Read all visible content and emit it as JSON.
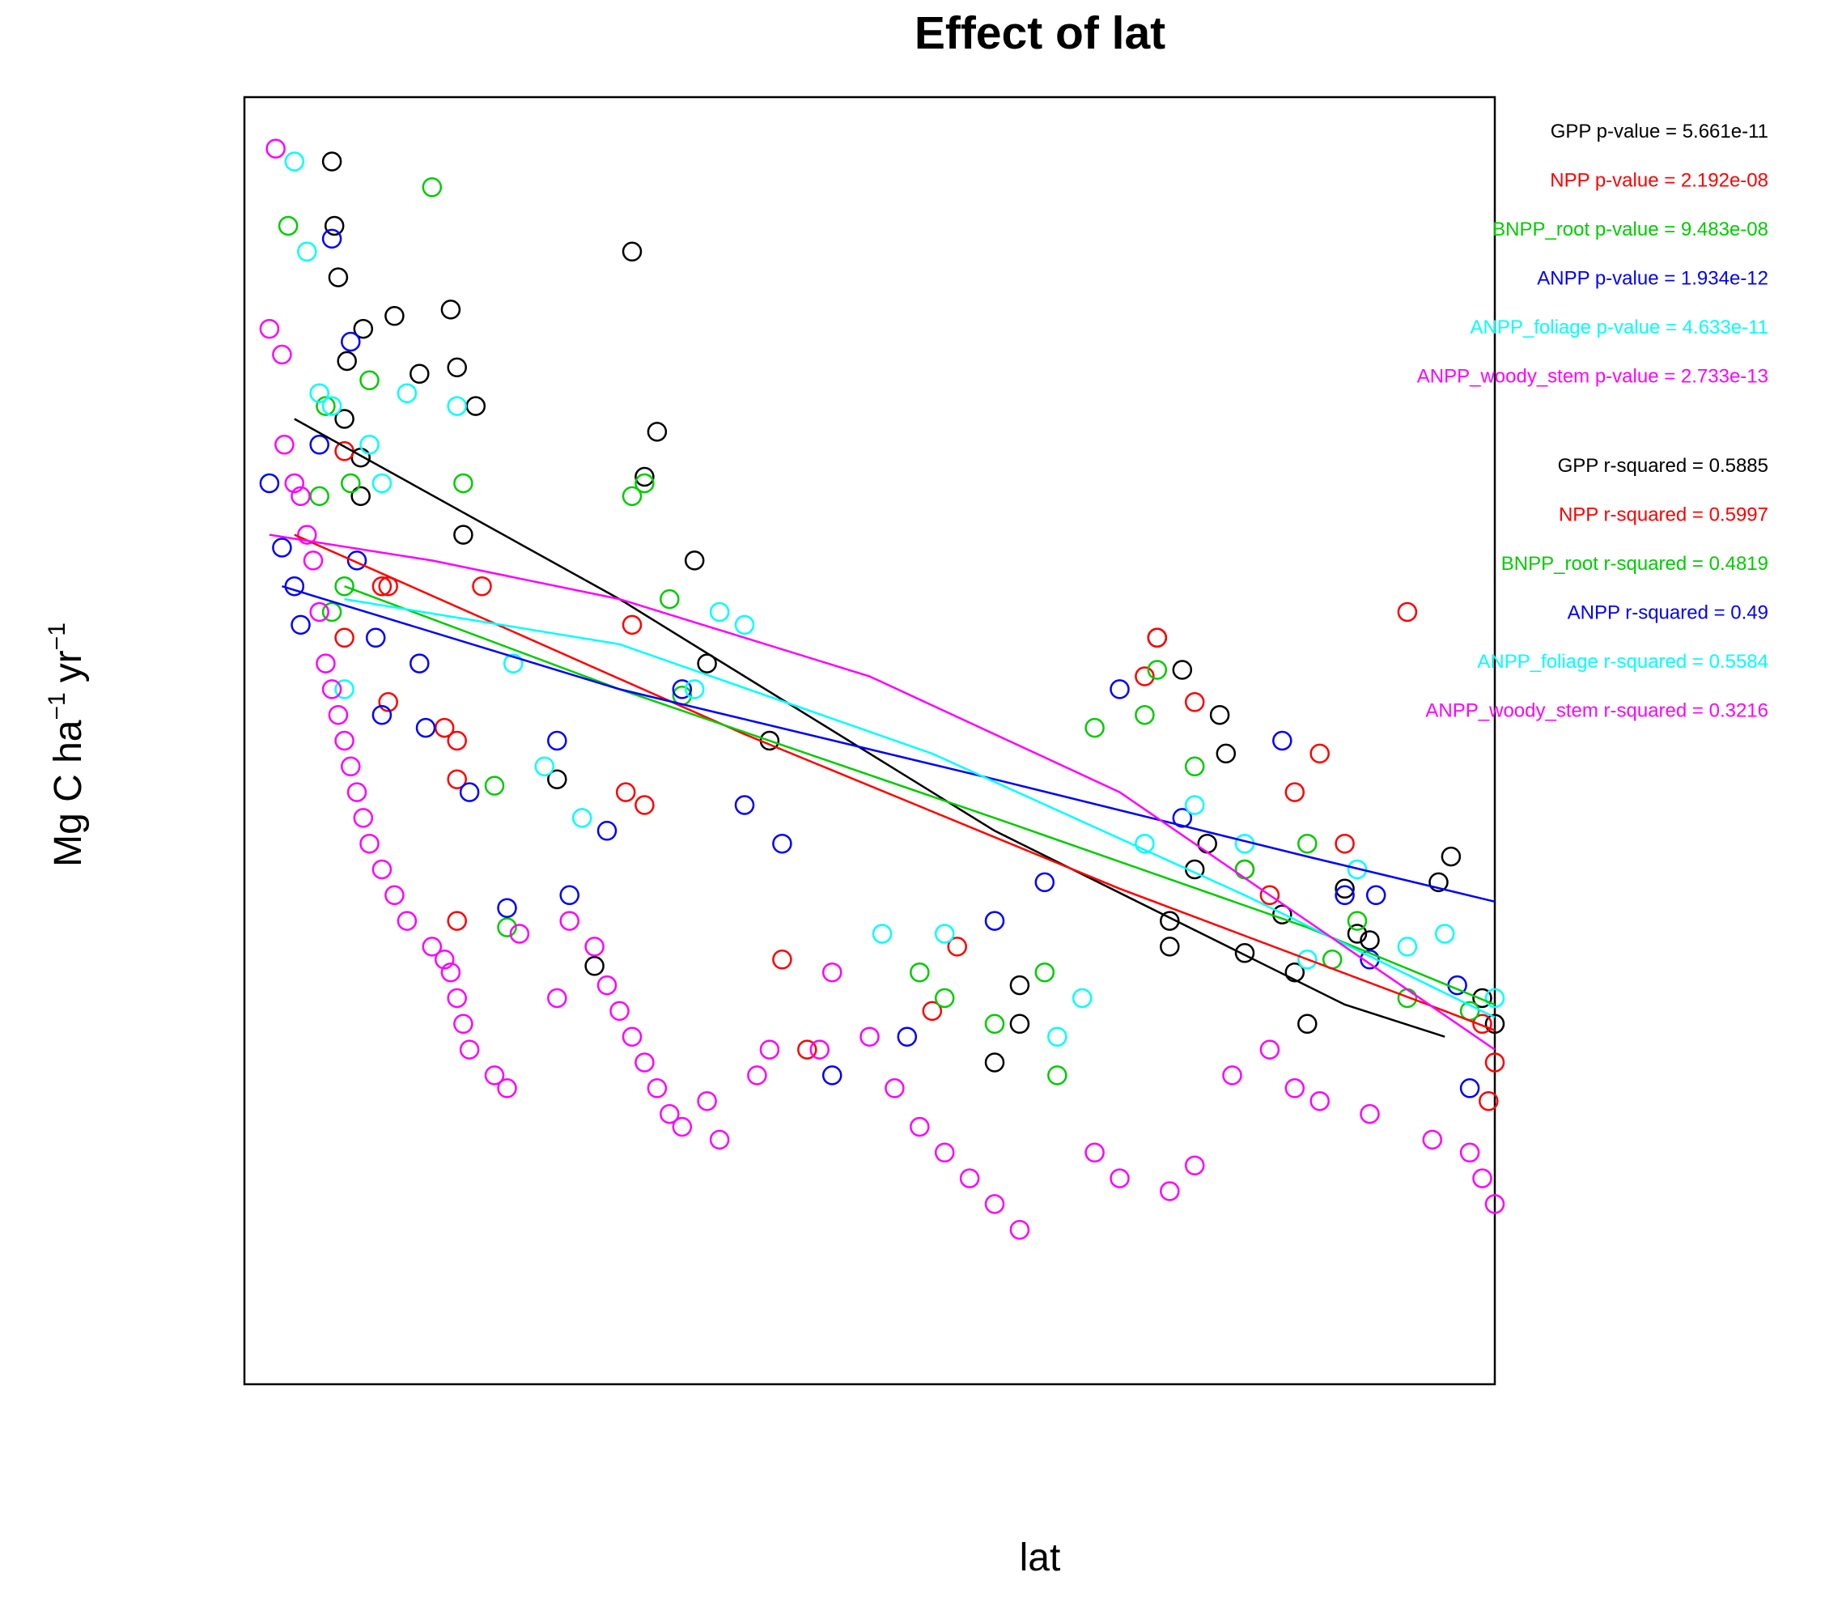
{
  "chart_data": {
    "type": "scatter",
    "title": "Effect of lat",
    "xlabel": "lat",
    "ylabel": "Mg C ha",
    "ylabel_unit_a": "yr",
    "ylabel_superscript": "−1",
    "xlim": [
      0,
      1000
    ],
    "ylim": [
      0,
      1000
    ],
    "axis_ticks": "none",
    "grid": false,
    "annotation_placement": "right",
    "series": [
      {
        "name": "GPP",
        "color": "#000000",
        "points": [
          [
            70,
            950
          ],
          [
            72,
            900
          ],
          [
            75,
            860
          ],
          [
            80,
            750
          ],
          [
            82,
            795
          ],
          [
            93,
            720
          ],
          [
            93,
            690
          ],
          [
            95,
            820
          ],
          [
            120,
            830
          ],
          [
            140,
            785
          ],
          [
            165,
            835
          ],
          [
            170,
            790
          ],
          [
            185,
            760
          ],
          [
            175,
            660
          ],
          [
            310,
            880
          ],
          [
            330,
            740
          ],
          [
            320,
            705
          ],
          [
            250,
            470
          ],
          [
            280,
            325
          ],
          [
            360,
            640
          ],
          [
            370,
            560
          ],
          [
            420,
            500
          ],
          [
            600,
            250
          ],
          [
            620,
            310
          ],
          [
            620,
            280
          ],
          [
            730,
            580
          ],
          [
            750,
            555
          ],
          [
            780,
            520
          ],
          [
            785,
            490
          ],
          [
            770,
            420
          ],
          [
            760,
            400
          ],
          [
            740,
            360
          ],
          [
            740,
            340
          ],
          [
            800,
            335
          ],
          [
            830,
            365
          ],
          [
            840,
            320
          ],
          [
            850,
            280
          ],
          [
            880,
            385
          ],
          [
            890,
            350
          ],
          [
            900,
            345
          ],
          [
            955,
            390
          ],
          [
            965,
            410
          ],
          [
            990,
            300
          ],
          [
            1000,
            280
          ]
        ],
        "fit_line": [
          [
            40,
            750
          ],
          [
            300,
            610
          ],
          [
            600,
            430
          ],
          [
            880,
            295
          ],
          [
            960,
            270
          ]
        ]
      },
      {
        "name": "NPP",
        "color": "#ff0000",
        "points": [
          [
            80,
            725
          ],
          [
            80,
            580
          ],
          [
            110,
            620
          ],
          [
            115,
            620
          ],
          [
            115,
            530
          ],
          [
            160,
            510
          ],
          [
            170,
            500
          ],
          [
            170,
            470
          ],
          [
            170,
            360
          ],
          [
            190,
            620
          ],
          [
            310,
            590
          ],
          [
            305,
            460
          ],
          [
            320,
            450
          ],
          [
            430,
            330
          ],
          [
            450,
            260
          ],
          [
            550,
            290
          ],
          [
            570,
            340
          ],
          [
            720,
            550
          ],
          [
            730,
            580
          ],
          [
            760,
            530
          ],
          [
            800,
            400
          ],
          [
            820,
            380
          ],
          [
            840,
            460
          ],
          [
            860,
            490
          ],
          [
            880,
            420
          ],
          [
            930,
            600
          ],
          [
            990,
            280
          ],
          [
            995,
            220
          ],
          [
            1000,
            250
          ]
        ],
        "fit_line": [
          [
            40,
            660
          ],
          [
            400,
            505
          ],
          [
            700,
            385
          ],
          [
            960,
            290
          ],
          [
            1000,
            275
          ]
        ]
      },
      {
        "name": "BNPP_root",
        "color": "#00cc00",
        "points": [
          [
            35,
            900
          ],
          [
            60,
            690
          ],
          [
            65,
            760
          ],
          [
            70,
            600
          ],
          [
            80,
            620
          ],
          [
            85,
            700
          ],
          [
            100,
            780
          ],
          [
            150,
            930
          ],
          [
            175,
            700
          ],
          [
            200,
            465
          ],
          [
            210,
            355
          ],
          [
            310,
            690
          ],
          [
            320,
            700
          ],
          [
            340,
            610
          ],
          [
            350,
            535
          ],
          [
            540,
            320
          ],
          [
            560,
            300
          ],
          [
            600,
            280
          ],
          [
            640,
            320
          ],
          [
            650,
            240
          ],
          [
            680,
            510
          ],
          [
            720,
            520
          ],
          [
            730,
            555
          ],
          [
            760,
            480
          ],
          [
            800,
            400
          ],
          [
            850,
            420
          ],
          [
            870,
            330
          ],
          [
            890,
            360
          ],
          [
            930,
            300
          ],
          [
            980,
            290
          ]
        ],
        "fit_line": [
          [
            80,
            620
          ],
          [
            300,
            540
          ],
          [
            600,
            440
          ],
          [
            850,
            355
          ],
          [
            1000,
            295
          ]
        ]
      },
      {
        "name": "ANPP",
        "color": "#0000ff",
        "points": [
          [
            20,
            700
          ],
          [
            30,
            650
          ],
          [
            40,
            620
          ],
          [
            45,
            590
          ],
          [
            60,
            730
          ],
          [
            70,
            890
          ],
          [
            85,
            810
          ],
          [
            90,
            640
          ],
          [
            105,
            580
          ],
          [
            110,
            520
          ],
          [
            140,
            560
          ],
          [
            145,
            510
          ],
          [
            180,
            460
          ],
          [
            210,
            370
          ],
          [
            250,
            500
          ],
          [
            260,
            380
          ],
          [
            290,
            430
          ],
          [
            350,
            540
          ],
          [
            400,
            450
          ],
          [
            430,
            420
          ],
          [
            470,
            240
          ],
          [
            530,
            270
          ],
          [
            600,
            360
          ],
          [
            640,
            390
          ],
          [
            700,
            540
          ],
          [
            750,
            440
          ],
          [
            830,
            500
          ],
          [
            880,
            380
          ],
          [
            900,
            330
          ],
          [
            905,
            380
          ],
          [
            970,
            310
          ],
          [
            980,
            230
          ]
        ],
        "fit_line": [
          [
            30,
            620
          ],
          [
            300,
            540
          ],
          [
            600,
            470
          ],
          [
            850,
            410
          ],
          [
            1000,
            375
          ]
        ]
      },
      {
        "name": "ANPP_foliage",
        "color": "#00ffff",
        "points": [
          [
            40,
            950
          ],
          [
            50,
            880
          ],
          [
            60,
            770
          ],
          [
            70,
            760
          ],
          [
            80,
            540
          ],
          [
            100,
            730
          ],
          [
            110,
            700
          ],
          [
            130,
            770
          ],
          [
            170,
            760
          ],
          [
            215,
            560
          ],
          [
            240,
            480
          ],
          [
            270,
            440
          ],
          [
            360,
            540
          ],
          [
            380,
            600
          ],
          [
            400,
            590
          ],
          [
            510,
            350
          ],
          [
            560,
            350
          ],
          [
            650,
            270
          ],
          [
            670,
            300
          ],
          [
            720,
            420
          ],
          [
            760,
            450
          ],
          [
            800,
            420
          ],
          [
            850,
            330
          ],
          [
            890,
            400
          ],
          [
            930,
            340
          ],
          [
            960,
            350
          ],
          [
            1000,
            300
          ]
        ],
        "fit_line": [
          [
            80,
            610
          ],
          [
            300,
            575
          ],
          [
            550,
            490
          ],
          [
            800,
            380
          ],
          [
            1000,
            285
          ]
        ]
      },
      {
        "name": "ANPP_woody_stem",
        "color": "#ff00ff",
        "points": [
          [
            25,
            960
          ],
          [
            20,
            820
          ],
          [
            30,
            800
          ],
          [
            32,
            730
          ],
          [
            40,
            700
          ],
          [
            45,
            690
          ],
          [
            50,
            660
          ],
          [
            55,
            640
          ],
          [
            60,
            600
          ],
          [
            65,
            560
          ],
          [
            70,
            540
          ],
          [
            75,
            520
          ],
          [
            80,
            500
          ],
          [
            85,
            480
          ],
          [
            90,
            460
          ],
          [
            95,
            440
          ],
          [
            100,
            420
          ],
          [
            110,
            400
          ],
          [
            120,
            380
          ],
          [
            130,
            360
          ],
          [
            150,
            340
          ],
          [
            160,
            330
          ],
          [
            165,
            320
          ],
          [
            170,
            300
          ],
          [
            175,
            280
          ],
          [
            180,
            260
          ],
          [
            200,
            240
          ],
          [
            210,
            230
          ],
          [
            220,
            350
          ],
          [
            250,
            300
          ],
          [
            260,
            360
          ],
          [
            280,
            340
          ],
          [
            290,
            310
          ],
          [
            300,
            290
          ],
          [
            310,
            270
          ],
          [
            320,
            250
          ],
          [
            330,
            230
          ],
          [
            340,
            210
          ],
          [
            350,
            200
          ],
          [
            370,
            220
          ],
          [
            380,
            190
          ],
          [
            410,
            240
          ],
          [
            420,
            260
          ],
          [
            460,
            260
          ],
          [
            470,
            320
          ],
          [
            500,
            270
          ],
          [
            520,
            230
          ],
          [
            540,
            200
          ],
          [
            560,
            180
          ],
          [
            580,
            160
          ],
          [
            600,
            140
          ],
          [
            620,
            120
          ],
          [
            680,
            180
          ],
          [
            700,
            160
          ],
          [
            740,
            150
          ],
          [
            760,
            170
          ],
          [
            790,
            240
          ],
          [
            820,
            260
          ],
          [
            840,
            230
          ],
          [
            860,
            220
          ],
          [
            900,
            210
          ],
          [
            950,
            190
          ],
          [
            980,
            180
          ],
          [
            990,
            160
          ],
          [
            1000,
            140
          ]
        ],
        "fit_line": [
          [
            20,
            660
          ],
          [
            150,
            640
          ],
          [
            300,
            610
          ],
          [
            500,
            550
          ],
          [
            700,
            460
          ],
          [
            850,
            360
          ],
          [
            1000,
            260
          ]
        ]
      }
    ],
    "annotations": [
      {
        "series": "GPP",
        "label": "GPP p-value = ",
        "value": "5.661e-11",
        "color": "#000000"
      },
      {
        "series": "NPP",
        "label": "NPP p-value = ",
        "value": "2.192e-08",
        "color": "#ff0000"
      },
      {
        "series": "BNPP_root",
        "label": "BNPP_root p-value = ",
        "value": "9.483e-08",
        "color": "#00cc00"
      },
      {
        "series": "ANPP",
        "label": "ANPP p-value = ",
        "value": "1.934e-12",
        "color": "#0000ff"
      },
      {
        "series": "ANPP_foliage",
        "label": "ANPP_foliage p-value = ",
        "value": "4.633e-11",
        "color": "#00ffff"
      },
      {
        "series": "ANPP_woody_stem",
        "label": "ANPP_woody_stem p-value = ",
        "value": "2.733e-13",
        "color": "#ff00ff"
      },
      {
        "series": "GPP",
        "label": "GPP r-squared = ",
        "value": "0.5885",
        "color": "#000000"
      },
      {
        "series": "NPP",
        "label": "NPP r-squared = ",
        "value": "0.5997",
        "color": "#ff0000"
      },
      {
        "series": "BNPP_root",
        "label": "BNPP_root r-squared = ",
        "value": "0.4819",
        "color": "#00cc00"
      },
      {
        "series": "ANPP",
        "label": "ANPP r-squared = ",
        "value": "0.49",
        "color": "#0000ff"
      },
      {
        "series": "ANPP_foliage",
        "label": "ANPP_foliage r-squared = ",
        "value": "0.5584",
        "color": "#00ffff"
      },
      {
        "series": "ANPP_woody_stem",
        "label": "ANPP_woody_stem r-squared = ",
        "value": "0.3216",
        "color": "#ff00ff"
      }
    ]
  }
}
